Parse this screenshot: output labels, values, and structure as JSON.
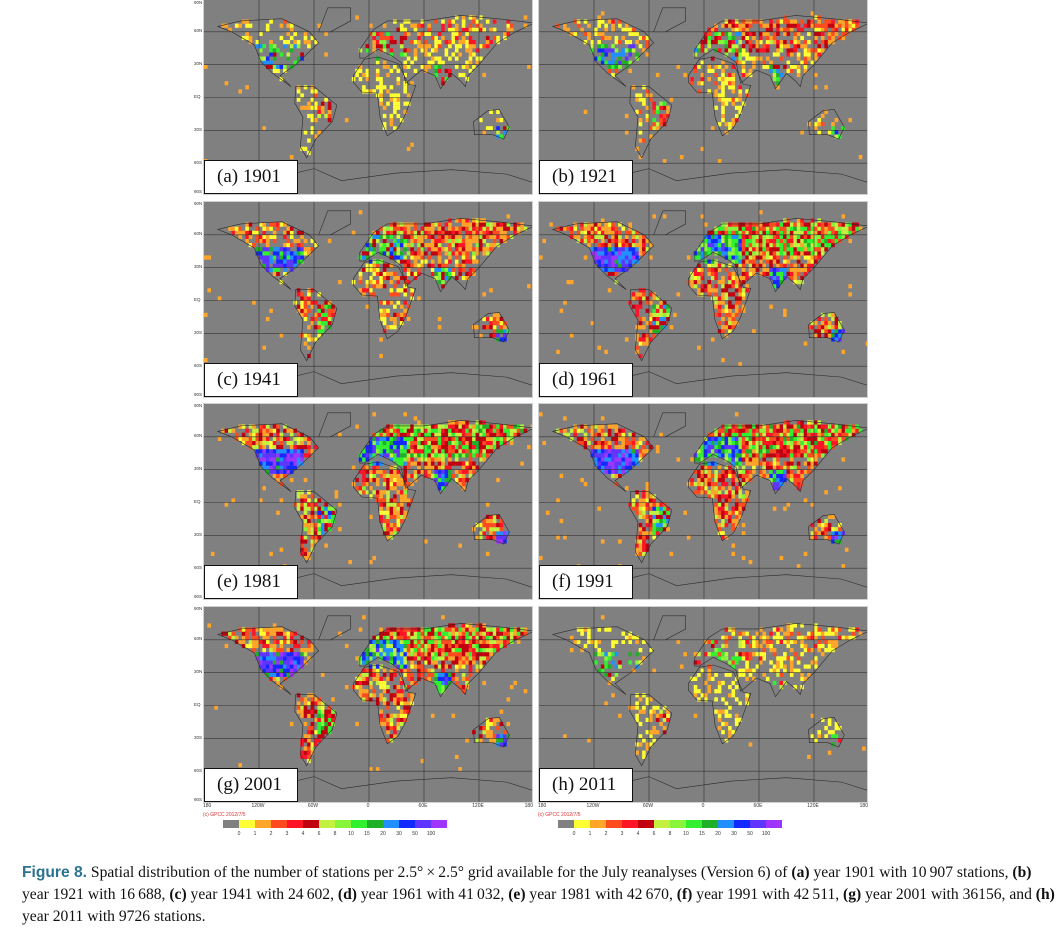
{
  "panels": [
    {
      "label": "(a) 1901",
      "year": 1901,
      "stations": 10907
    },
    {
      "label": "(b) 1921",
      "year": 1921,
      "stations": 16688
    },
    {
      "label": "(c) 1941",
      "year": 1941,
      "stations": 24602
    },
    {
      "label": "(d) 1961",
      "year": 1961,
      "stations": 41032
    },
    {
      "label": "(e) 1981",
      "year": 1981,
      "stations": 42670
    },
    {
      "label": "(f) 1991",
      "year": 1991,
      "stations": 42511
    },
    {
      "label": "(g) 2001",
      "year": 2001,
      "stations": 36156
    },
    {
      "label": "(h) 2011",
      "year": 2011,
      "stations": 9726
    }
  ],
  "y_ticks": [
    "90N",
    "60N",
    "30N",
    "EQ",
    "30S",
    "60S",
    "90S"
  ],
  "x_ticks": [
    "180",
    "120W",
    "60W",
    "0",
    "60E",
    "120E",
    "180"
  ],
  "credit": "(c) GPCC 2012/7/5",
  "colorbar": {
    "colors": [
      "#808080",
      "#ffff33",
      "#ffa52a",
      "#ff4b1e",
      "#ff1426",
      "#c0000e",
      "#c4f040",
      "#88f43a",
      "#30f030",
      "#20b028",
      "#2090ff",
      "#1228ff",
      "#6034ff",
      "#a034ff"
    ],
    "labels": [
      "0",
      "1",
      "2",
      "3",
      "4",
      "6",
      "8",
      "10",
      "15",
      "20",
      "30",
      "50",
      "100"
    ],
    "bins": [
      0,
      1,
      2,
      3,
      4,
      6,
      8,
      10,
      15,
      20,
      30,
      50,
      100
    ]
  },
  "caption": {
    "fig": "Figure 8.",
    "parts": [
      {
        "t": " Spatial distribution of the number of stations per 2.5° × 2.5° grid available for the July reanalyses (Version 6) of "
      },
      {
        "t": "(a)",
        "b": true
      },
      {
        "t": " year 1901 with 10 907 stations, "
      },
      {
        "t": "(b)",
        "b": true
      },
      {
        "t": " year 1921 with 16 688, "
      },
      {
        "t": "(c)",
        "b": true
      },
      {
        "t": " year 1941 with 24 602, "
      },
      {
        "t": "(d)",
        "b": true
      },
      {
        "t": " year 1961 with 41 032, "
      },
      {
        "t": "(e)",
        "b": true
      },
      {
        "t": " year 1981 with 42 670, "
      },
      {
        "t": "(f)",
        "b": true
      },
      {
        "t": " year 1991 with 42 511, "
      },
      {
        "t": "(g)",
        "b": true
      },
      {
        "t": " year 2001 with 36156, and "
      },
      {
        "t": "(h)",
        "b": true
      },
      {
        "t": " year 2011 with 9726 stations."
      }
    ]
  }
}
